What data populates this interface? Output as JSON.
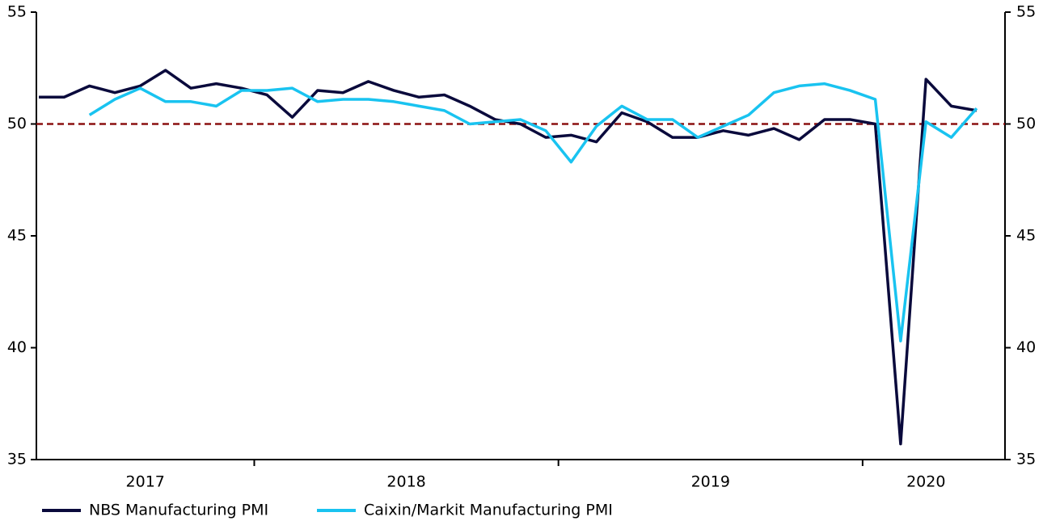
{
  "chart_data": {
    "type": "line",
    "categories": [
      null,
      null,
      null,
      null,
      null,
      null,
      null,
      null,
      null,
      null,
      null,
      null,
      null,
      null,
      null,
      null,
      null,
      null,
      null,
      null,
      null,
      null,
      null,
      null,
      null,
      null,
      null,
      null,
      null,
      null,
      null,
      null,
      null,
      null,
      null,
      null,
      null,
      null
    ],
    "x_groups": [
      {
        "label": "2017",
        "start": 0,
        "end": 8
      },
      {
        "label": "2018",
        "start": 9,
        "end": 20
      },
      {
        "label": "2019",
        "start": 21,
        "end": 32
      },
      {
        "label": "2020",
        "start": 33,
        "end": 37
      }
    ],
    "series": [
      {
        "name": "NBS Manufacturing PMI",
        "color": "#0a0a3c",
        "values": [
          51.2,
          51.2,
          51.7,
          51.4,
          51.7,
          52.4,
          51.6,
          51.8,
          51.6,
          51.3,
          50.3,
          51.5,
          51.4,
          51.9,
          51.5,
          51.2,
          51.3,
          50.8,
          50.2,
          50.0,
          49.4,
          49.5,
          49.2,
          50.5,
          50.1,
          49.4,
          49.4,
          49.7,
          49.5,
          49.8,
          49.3,
          50.2,
          50.2,
          50.0,
          35.7,
          52.0,
          50.8,
          50.6
        ]
      },
      {
        "name": "Caixin/Markit Manufacturing PMI",
        "color": "#19c3f0",
        "values": [
          null,
          null,
          50.4,
          51.1,
          51.6,
          51.0,
          51.0,
          50.8,
          51.5,
          51.5,
          51.6,
          51.0,
          51.1,
          51.1,
          51.0,
          50.8,
          50.6,
          50.0,
          50.1,
          50.2,
          49.7,
          48.3,
          49.9,
          50.8,
          50.2,
          50.2,
          49.4,
          49.9,
          50.4,
          51.4,
          51.7,
          51.8,
          51.5,
          51.1,
          40.3,
          50.1,
          49.4,
          50.7
        ]
      }
    ],
    "ylim": [
      35,
      55
    ],
    "yticks": [
      35,
      40,
      45,
      50,
      55
    ],
    "y2lim": [
      35,
      55
    ],
    "y2ticks": [
      35,
      40,
      45,
      50,
      55
    ],
    "hline": 50,
    "hline_color": "#8b1010",
    "legend": "bottom-left"
  }
}
